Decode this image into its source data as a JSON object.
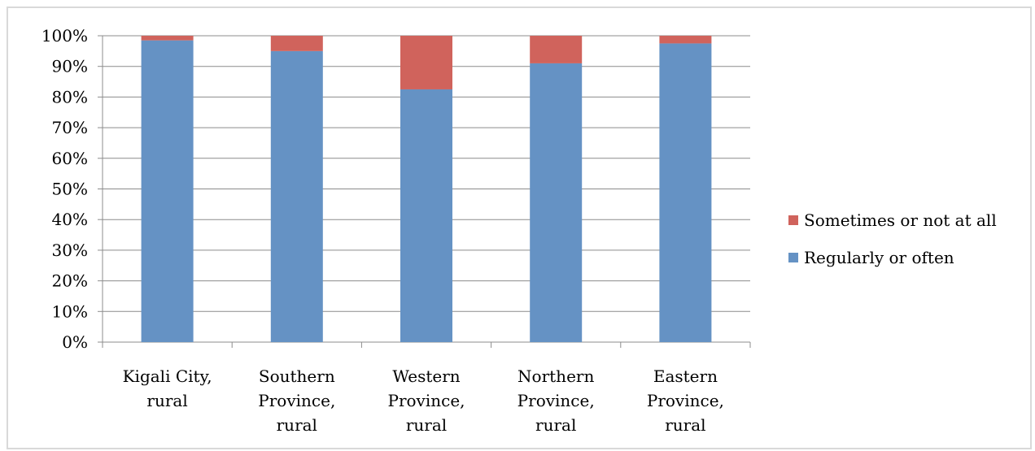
{
  "chart_data": {
    "type": "bar",
    "stacked": true,
    "categories": [
      [
        "Kigali City,",
        "rural"
      ],
      [
        "Southern",
        "Province,",
        "rural"
      ],
      [
        "Western",
        "Province,",
        "rural"
      ],
      [
        "Northern",
        "Province,",
        "rural"
      ],
      [
        "Eastern",
        "Province,",
        "rural"
      ]
    ],
    "series": [
      {
        "name": "Regularly or often",
        "color": "#6592c4",
        "values": [
          98.5,
          95,
          82.5,
          91,
          97.5
        ]
      },
      {
        "name": "Sometimes or not at all",
        "color": "#d0635c",
        "values": [
          1.5,
          5,
          17.5,
          9,
          2.5
        ]
      }
    ],
    "yticks": [
      "0%",
      "10%",
      "20%",
      "30%",
      "40%",
      "50%",
      "60%",
      "70%",
      "80%",
      "90%",
      "100%"
    ],
    "ylim": [
      0,
      100
    ],
    "grid": true,
    "legend": {
      "position": "right",
      "order": [
        "Sometimes or not at all",
        "Regularly or often"
      ]
    },
    "title": "",
    "xlabel": "",
    "ylabel": ""
  }
}
